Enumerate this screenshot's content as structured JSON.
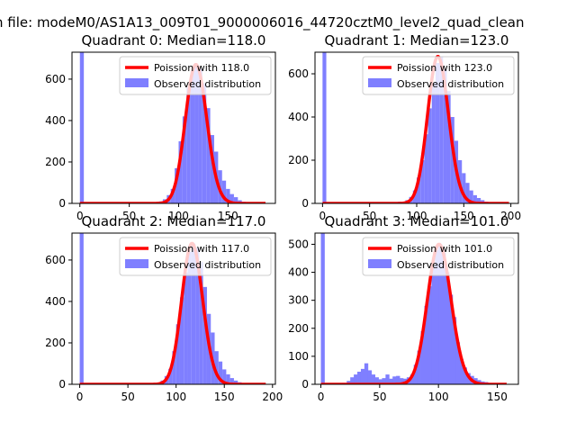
{
  "figure": {
    "suptitle": "n file: modeM0/AS1A13_009T01_9000006016_44720cztM0_level2_quad_clean"
  },
  "colors": {
    "poisson": "#ff0000",
    "hist": "#7f7fff",
    "frame": "#000000"
  },
  "chart_data": [
    {
      "type": "bar",
      "title": "Quadrant 0: Median=118.0",
      "xlim": [
        -8,
        198
      ],
      "ylim": [
        0,
        730
      ],
      "xticks": [
        0,
        50,
        100,
        150
      ],
      "yticks": [
        0,
        200,
        400,
        600
      ],
      "median": 118.0,
      "bin_width": 4,
      "bins": [
        [
          0,
          730
        ],
        [
          64,
          2
        ],
        [
          80,
          10
        ],
        [
          84,
          20
        ],
        [
          88,
          40
        ],
        [
          92,
          70
        ],
        [
          96,
          170
        ],
        [
          100,
          300
        ],
        [
          104,
          420
        ],
        [
          108,
          560
        ],
        [
          112,
          640
        ],
        [
          116,
          670
        ],
        [
          120,
          650
        ],
        [
          124,
          580
        ],
        [
          128,
          460
        ],
        [
          132,
          330
        ],
        [
          136,
          250
        ],
        [
          140,
          160
        ],
        [
          144,
          110
        ],
        [
          148,
          70
        ],
        [
          152,
          45
        ],
        [
          156,
          30
        ],
        [
          160,
          15
        ],
        [
          164,
          8
        ],
        [
          168,
          5
        ],
        [
          172,
          2
        ],
        [
          180,
          1
        ]
      ],
      "legend": [
        "Poission with 118.0",
        "Observed distribution"
      ]
    },
    {
      "type": "bar",
      "title": "Quadrant 1: Median=123.0",
      "xlim": [
        -8,
        208
      ],
      "ylim": [
        0,
        700
      ],
      "xticks": [
        0,
        50,
        100,
        150,
        200
      ],
      "yticks": [
        0,
        200,
        400,
        600
      ],
      "median": 123.0,
      "bin_width": 4,
      "bins": [
        [
          0,
          700
        ],
        [
          68,
          2
        ],
        [
          80,
          8
        ],
        [
          88,
          15
        ],
        [
          92,
          30
        ],
        [
          96,
          60
        ],
        [
          100,
          120
        ],
        [
          104,
          200
        ],
        [
          108,
          320
        ],
        [
          112,
          440
        ],
        [
          116,
          560
        ],
        [
          120,
          650
        ],
        [
          124,
          680
        ],
        [
          128,
          620
        ],
        [
          132,
          520
        ],
        [
          136,
          400
        ],
        [
          140,
          290
        ],
        [
          144,
          200
        ],
        [
          148,
          140
        ],
        [
          152,
          95
        ],
        [
          156,
          60
        ],
        [
          160,
          38
        ],
        [
          164,
          25
        ],
        [
          168,
          15
        ],
        [
          172,
          8
        ],
        [
          176,
          4
        ],
        [
          184,
          2
        ]
      ],
      "legend": [
        "Poission with 123.0",
        "Observed distribution"
      ]
    },
    {
      "type": "bar",
      "title": "Quadrant 2: Median=117.0",
      "xlim": [
        -8,
        203
      ],
      "ylim": [
        0,
        730
      ],
      "xticks": [
        0,
        50,
        100,
        150,
        200
      ],
      "yticks": [
        0,
        200,
        400,
        600
      ],
      "median": 117.0,
      "bin_width": 4,
      "bins": [
        [
          0,
          730
        ],
        [
          68,
          2
        ],
        [
          80,
          8
        ],
        [
          84,
          18
        ],
        [
          88,
          40
        ],
        [
          92,
          75
        ],
        [
          96,
          160
        ],
        [
          100,
          290
        ],
        [
          104,
          420
        ],
        [
          108,
          540
        ],
        [
          112,
          640
        ],
        [
          116,
          680
        ],
        [
          120,
          660
        ],
        [
          124,
          590
        ],
        [
          128,
          470
        ],
        [
          132,
          340
        ],
        [
          136,
          250
        ],
        [
          140,
          160
        ],
        [
          144,
          110
        ],
        [
          148,
          72
        ],
        [
          152,
          48
        ],
        [
          156,
          30
        ],
        [
          160,
          18
        ],
        [
          164,
          10
        ],
        [
          168,
          5
        ],
        [
          172,
          3
        ],
        [
          180,
          1
        ]
      ],
      "legend": [
        "Poission with 117.0",
        "Observed distribution"
      ]
    },
    {
      "type": "bar",
      "title": "Quadrant 3: Median=101.0",
      "xlim": [
        -5,
        168
      ],
      "ylim": [
        0,
        540
      ],
      "xticks": [
        0,
        50,
        100,
        150
      ],
      "yticks": [
        0,
        100,
        200,
        300,
        400,
        500
      ],
      "median": 101.0,
      "bin_width": 3.3,
      "bins": [
        [
          0,
          540
        ],
        [
          18,
          5
        ],
        [
          22,
          12
        ],
        [
          25,
          25
        ],
        [
          28,
          35
        ],
        [
          31,
          45
        ],
        [
          34,
          55
        ],
        [
          37,
          75
        ],
        [
          40,
          50
        ],
        [
          43,
          35
        ],
        [
          46,
          25
        ],
        [
          49,
          18
        ],
        [
          52,
          22
        ],
        [
          55,
          35
        ],
        [
          58,
          20
        ],
        [
          61,
          28
        ],
        [
          64,
          30
        ],
        [
          67,
          22
        ],
        [
          70,
          20
        ],
        [
          73,
          25
        ],
        [
          76,
          35
        ],
        [
          79,
          70
        ],
        [
          82,
          120
        ],
        [
          85,
          190
        ],
        [
          88,
          280
        ],
        [
          91,
          350
        ],
        [
          94,
          420
        ],
        [
          97,
          480
        ],
        [
          100,
          500
        ],
        [
          103,
          470
        ],
        [
          106,
          400
        ],
        [
          109,
          320
        ],
        [
          112,
          240
        ],
        [
          115,
          150
        ],
        [
          118,
          90
        ],
        [
          121,
          60
        ],
        [
          124,
          40
        ],
        [
          127,
          30
        ],
        [
          130,
          22
        ],
        [
          133,
          15
        ],
        [
          136,
          10
        ],
        [
          139,
          8
        ],
        [
          142,
          5
        ],
        [
          145,
          3
        ],
        [
          150,
          1
        ]
      ],
      "legend": [
        "Poission with 101.0",
        "Observed distribution"
      ]
    }
  ]
}
